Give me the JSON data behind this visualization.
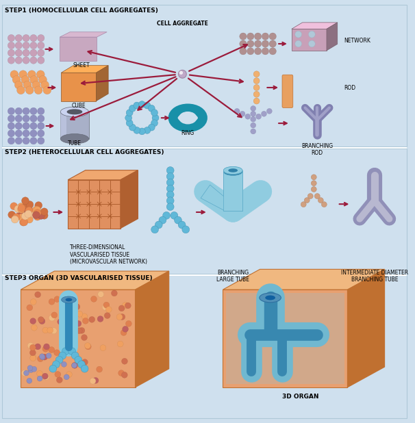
{
  "bg_color": "#cfe0ee",
  "panel_bg": "#cfe0ee",
  "arrow_color": "#9b1b3b",
  "step1_label": "STEP1 (HOMOCELLULAR CELL AGGREGATES)",
  "step2_label": "STEP2 (HETEROCELLULAR CELL AGGREGATES)",
  "step3_label": "STEP3 ORGAN (3D VASCULARISED TISSUE)",
  "cell_aggregate_label": "CELL AGGREGATE",
  "sheet_label": "SHEET",
  "cube_label": "CUBE",
  "tube_label": "TUBE",
  "network_label": "NETWORK",
  "rod_label": "ROD",
  "ring_label": "RING",
  "branching_rod_label": "BRANCHING\nROD",
  "step2_tissue_label": "THREE-DIMENSIONAL\nVASCULARISED TISSUE\n(MICROVASCULAR NETWORK)",
  "step2_large_tube_label": "BRANCHING\nLARGE TUBE",
  "step2_mid_tube_label": "INTERMEDIATE DIAMETER\nBRANCHING TUBE",
  "step3_right_label": "3D ORGAN",
  "label_fontsize": 5.5,
  "step_label_fontsize": 6.5
}
